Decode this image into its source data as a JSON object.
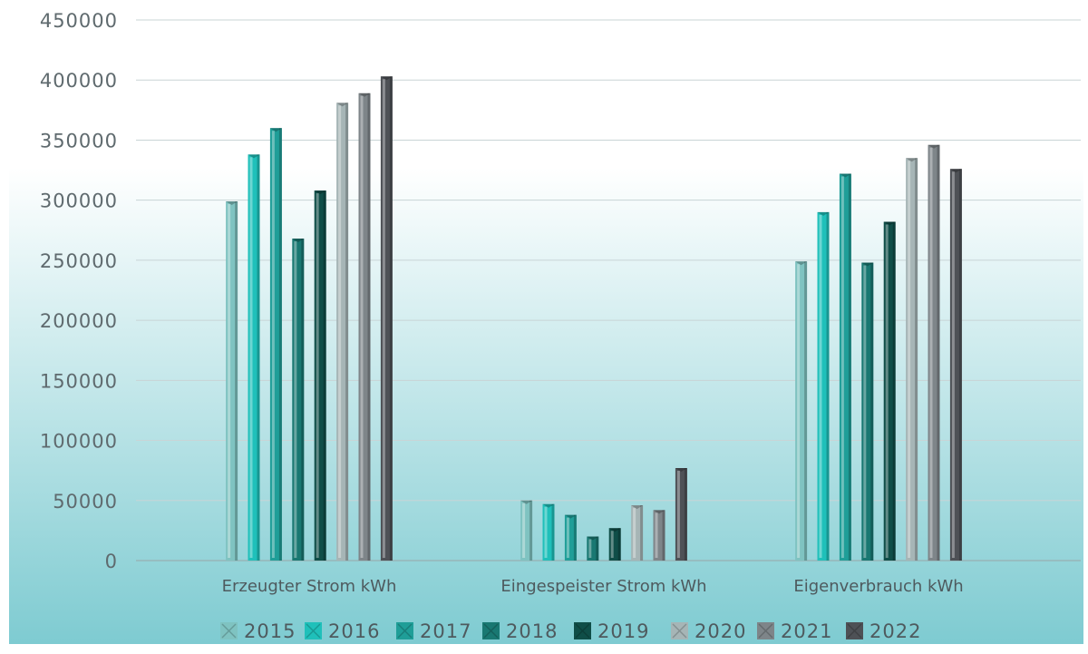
{
  "chart_data": {
    "type": "bar",
    "categories": [
      "Erzeugter Strom kWh",
      "Eingespeister Strom kWh",
      "Eigenverbrauch kWh"
    ],
    "series": [
      {
        "name": "2015",
        "values": [
          299000,
          50000,
          249000
        ],
        "color": "#7fc3c1"
      },
      {
        "name": "2016",
        "values": [
          338000,
          47000,
          290000
        ],
        "color": "#1fc0ba"
      },
      {
        "name": "2017",
        "values": [
          360000,
          38000,
          322000
        ],
        "color": "#1f9e98"
      },
      {
        "name": "2018",
        "values": [
          268000,
          20000,
          248000
        ],
        "color": "#197872"
      },
      {
        "name": "2019",
        "values": [
          308000,
          27000,
          282000
        ],
        "color": "#0f4e48"
      },
      {
        "name": "2020",
        "values": [
          381000,
          46000,
          335000
        ],
        "color": "#a6b5b6"
      },
      {
        "name": "2021",
        "values": [
          389000,
          42000,
          346000
        ],
        "color": "#7e8589"
      },
      {
        "name": "2022",
        "values": [
          403000,
          77000,
          326000
        ],
        "color": "#4e5156"
      }
    ],
    "yticks": [
      "0",
      "50000",
      "100000",
      "150000",
      "200000",
      "250000",
      "300000",
      "350000",
      "400000",
      "450000"
    ],
    "ylim": [
      0,
      450000
    ],
    "grid": true,
    "legend_position": "bottom",
    "background_gradient": [
      "#ffffff",
      "#7ecbd1"
    ]
  }
}
